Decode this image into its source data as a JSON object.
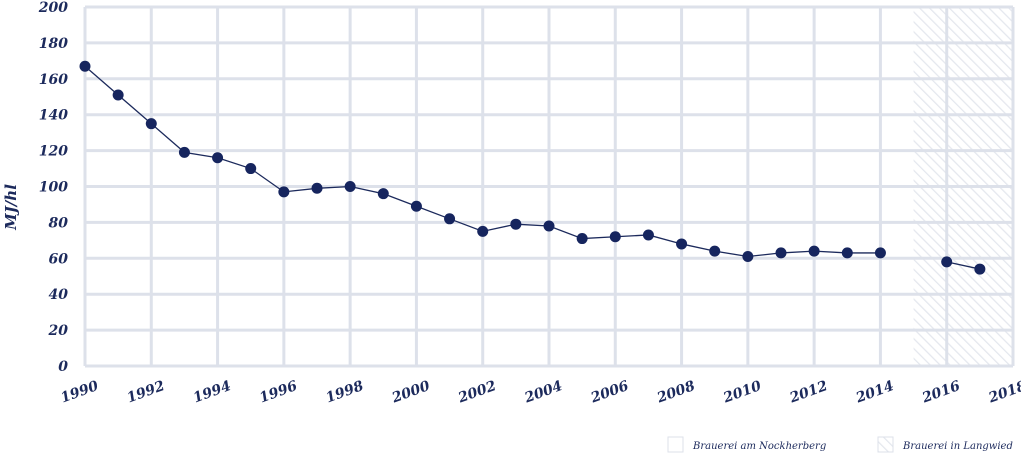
{
  "chart_data": {
    "type": "line",
    "xlabel": "",
    "ylabel": "MJ/hl",
    "xlim": [
      1990,
      2018
    ],
    "ylim": [
      0,
      200
    ],
    "yticks": [
      0,
      20,
      40,
      60,
      80,
      100,
      120,
      140,
      160,
      180,
      200
    ],
    "xticks": [
      1990,
      1992,
      1994,
      1996,
      1998,
      2000,
      2002,
      2004,
      2006,
      2008,
      2010,
      2012,
      2014,
      2016,
      2018
    ],
    "grid": true,
    "legend_position": "bottom-right",
    "shaded_region": {
      "x_from": 2015,
      "x_to": 2018,
      "legend": "Brauerei in Langwied"
    },
    "series": [
      {
        "name": "Brauerei am Nockherberg",
        "x": [
          1990,
          1991,
          1992,
          1993,
          1994,
          1995,
          1996,
          1997,
          1998,
          1999,
          2000,
          2001,
          2002,
          2003,
          2004,
          2005,
          2006,
          2007,
          2008,
          2009,
          2010,
          2011,
          2012,
          2013,
          2014
        ],
        "values": [
          167,
          151,
          135,
          119,
          116,
          110,
          97,
          99,
          100,
          96,
          89,
          82,
          75,
          79,
          78,
          71,
          72,
          73,
          68,
          64,
          61,
          63,
          64,
          63,
          63
        ],
        "connected": true
      },
      {
        "name": "Brauerei in Langwied",
        "x": [
          2016,
          2017
        ],
        "values": [
          58,
          54
        ],
        "connected": true
      }
    ],
    "legend": [
      {
        "label": "Brauerei am Nockherberg",
        "swatch": "plain"
      },
      {
        "label": "Brauerei in Langwied",
        "swatch": "hatched"
      }
    ]
  },
  "colors": {
    "line": "#1c2a5c",
    "marker": "#16255e",
    "grid": "#dde1ea",
    "text": "#1c2a5c",
    "hatch": "#e4e7ee"
  }
}
